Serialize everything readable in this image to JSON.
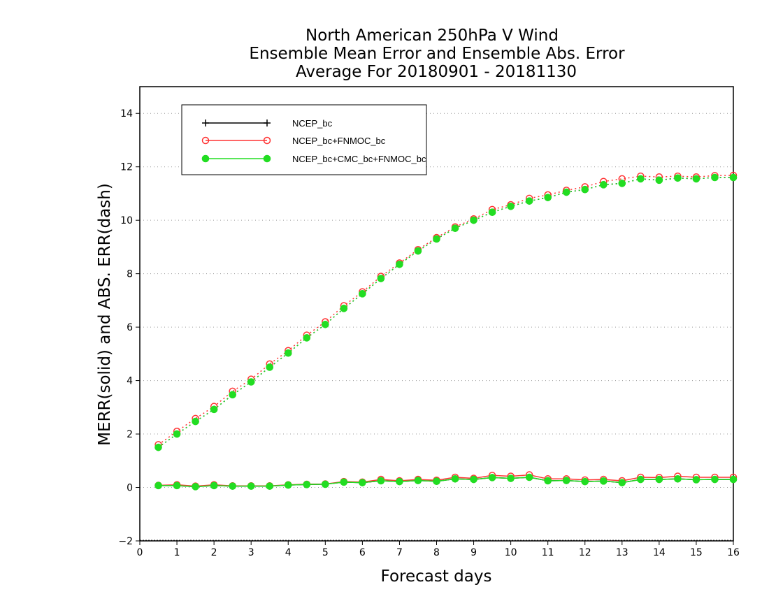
{
  "chart_data": {
    "type": "line",
    "title": [
      "North American 250hPa V Wind",
      "Ensemble Mean Error and Ensemble Abs. Error",
      "Average For 20180901 - 20181130"
    ],
    "xlabel": "Forecast days",
    "ylabel": "MERR(solid) and ABS. ERR(dash)",
    "xlim": [
      0,
      16
    ],
    "ylim": [
      -2,
      15
    ],
    "xticks": [
      0,
      1,
      2,
      3,
      4,
      5,
      6,
      7,
      8,
      9,
      10,
      11,
      12,
      13,
      14,
      15,
      16
    ],
    "yticks": [
      -2,
      0,
      2,
      4,
      6,
      8,
      10,
      12,
      14
    ],
    "grid": "horizontal dotted",
    "legend_position": "top-left",
    "x": [
      0.5,
      1,
      1.5,
      2,
      2.5,
      3,
      3.5,
      4,
      4.5,
      5,
      5.5,
      6,
      6.5,
      7,
      7.5,
      8,
      8.5,
      9,
      9.5,
      10,
      10.5,
      11,
      11.5,
      12,
      12.5,
      13,
      13.5,
      14,
      14.5,
      15,
      15.5,
      16
    ],
    "series": [
      {
        "name": "NCEP_bc",
        "color": "#000000",
        "marker": "plus",
        "merr": [
          0.07,
          0.07,
          0.03,
          0.07,
          0.05,
          0.05,
          0.05,
          0.09,
          0.11,
          0.12,
          0.2,
          0.18,
          0.25,
          0.22,
          0.26,
          0.23,
          0.32,
          0.3,
          0.37,
          0.34,
          0.38,
          0.25,
          0.26,
          0.22,
          0.24,
          0.18,
          0.3,
          0.3,
          0.32,
          0.29,
          0.3,
          0.3
        ],
        "abs_err": [
          1.5,
          2.0,
          2.47,
          2.92,
          3.47,
          3.95,
          4.5,
          5.03,
          5.6,
          6.1,
          6.7,
          7.25,
          7.82,
          8.35,
          8.85,
          9.3,
          9.7,
          10.0,
          10.3,
          10.52,
          10.72,
          10.85,
          11.05,
          11.15,
          11.33,
          11.38,
          11.55,
          11.5,
          11.58,
          11.55,
          11.6,
          11.6
        ]
      },
      {
        "name": "NCEP_bc+FNMOC_bc",
        "color": "#ff3333",
        "marker": "open-circle",
        "merr": [
          0.08,
          0.1,
          0.05,
          0.1,
          0.06,
          0.06,
          0.06,
          0.1,
          0.12,
          0.13,
          0.22,
          0.2,
          0.3,
          0.25,
          0.3,
          0.27,
          0.38,
          0.34,
          0.45,
          0.42,
          0.47,
          0.32,
          0.32,
          0.28,
          0.3,
          0.25,
          0.38,
          0.37,
          0.42,
          0.38,
          0.38,
          0.38
        ],
        "abs_err": [
          1.6,
          2.1,
          2.58,
          3.03,
          3.6,
          4.05,
          4.62,
          5.12,
          5.7,
          6.2,
          6.8,
          7.32,
          7.9,
          8.4,
          8.9,
          9.35,
          9.75,
          10.05,
          10.4,
          10.58,
          10.82,
          10.95,
          11.12,
          11.25,
          11.45,
          11.55,
          11.65,
          11.62,
          11.65,
          11.62,
          11.67,
          11.68
        ]
      },
      {
        "name": "NCEP_bc+CMC_bc+FNMOC_bc",
        "color": "#22dd22",
        "marker": "filled-circle",
        "merr": [
          0.07,
          0.07,
          0.03,
          0.07,
          0.05,
          0.05,
          0.05,
          0.09,
          0.11,
          0.12,
          0.2,
          0.18,
          0.25,
          0.22,
          0.26,
          0.23,
          0.32,
          0.3,
          0.37,
          0.34,
          0.38,
          0.25,
          0.26,
          0.22,
          0.24,
          0.18,
          0.3,
          0.3,
          0.32,
          0.29,
          0.3,
          0.3
        ],
        "abs_err": [
          1.5,
          2.0,
          2.47,
          2.92,
          3.47,
          3.95,
          4.5,
          5.03,
          5.6,
          6.1,
          6.7,
          7.25,
          7.82,
          8.35,
          8.85,
          9.3,
          9.7,
          10.0,
          10.3,
          10.52,
          10.72,
          10.85,
          11.05,
          11.15,
          11.33,
          11.38,
          11.55,
          11.5,
          11.58,
          11.55,
          11.6,
          11.6
        ]
      }
    ]
  }
}
